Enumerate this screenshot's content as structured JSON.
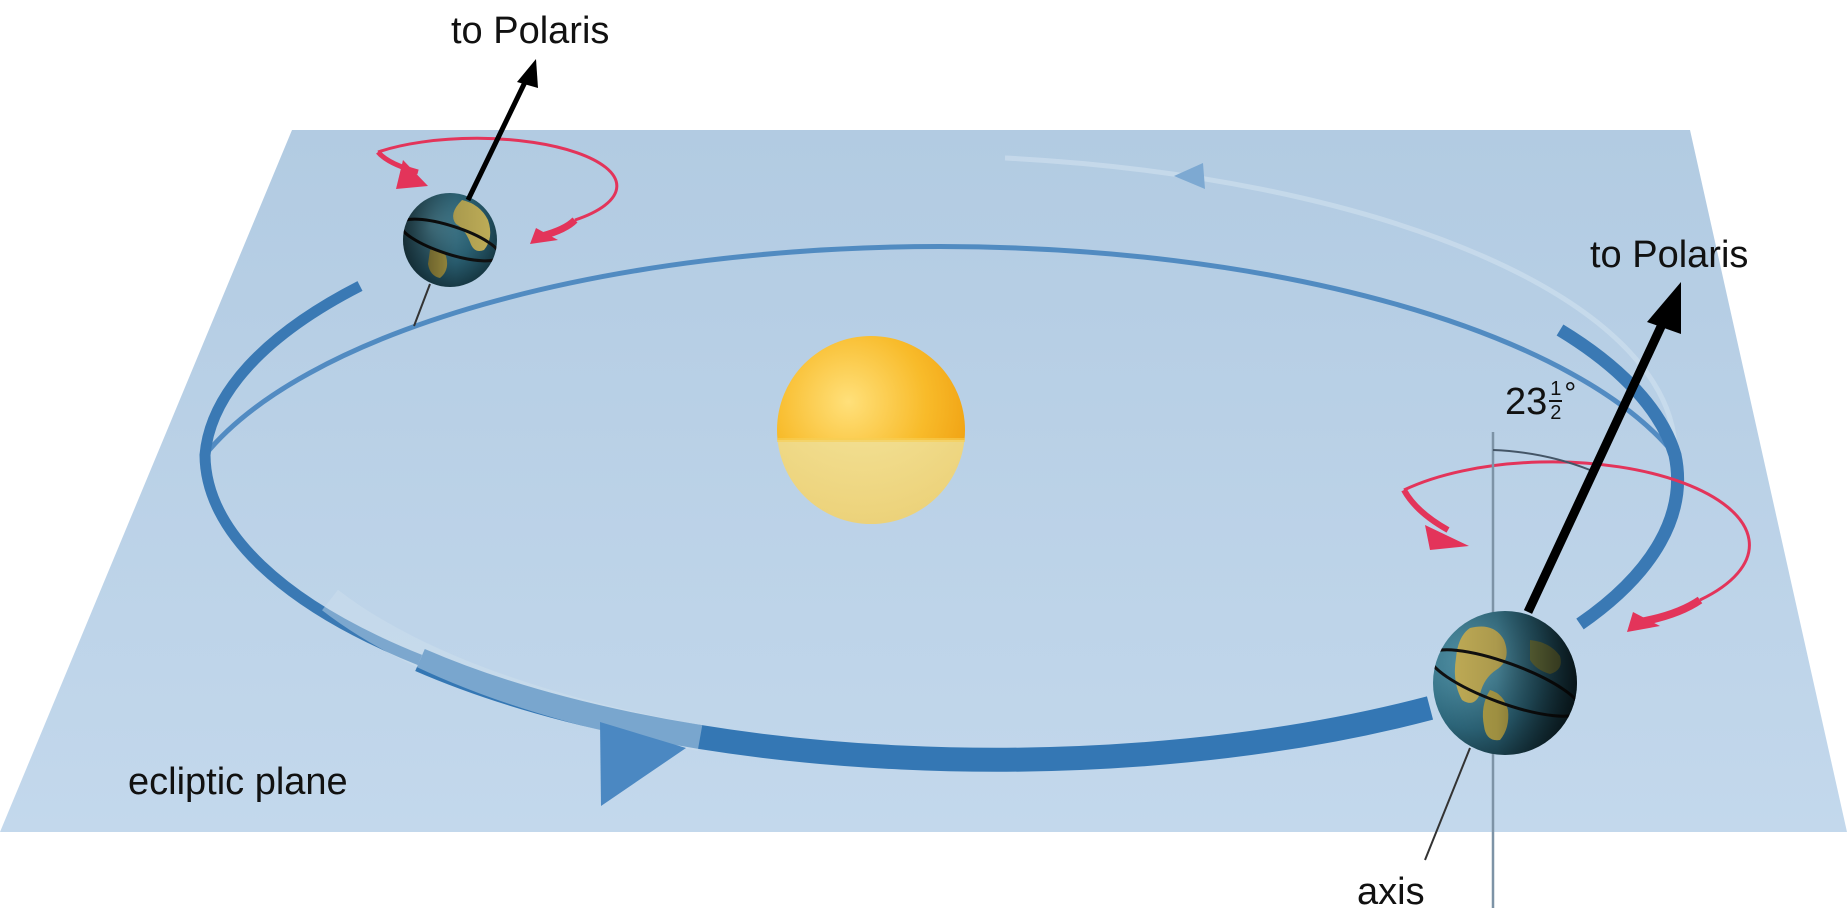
{
  "labels": {
    "polaris_top": "to Polaris",
    "polaris_right": "to Polaris",
    "ecliptic_plane": "ecliptic plane",
    "axis": "axis"
  },
  "tilt_angle": {
    "whole": "23",
    "numerator": "1",
    "denominator": "2",
    "unit": "°"
  },
  "colors": {
    "plane": "#b6cfe5",
    "orbit": "#3a79b4",
    "sun_upper": "#f6b41c",
    "sun_lower": "#f3de8a",
    "rotation_arrow": "#e3345a",
    "polaris_arrow": "#000000",
    "earth_ocean": "#2e6e86",
    "earth_land": "#c9b45a"
  },
  "icons": {
    "sun": "sun-sphere-icon",
    "earth": "earth-globe-icon",
    "rotation": "rotation-arrow-icon"
  }
}
